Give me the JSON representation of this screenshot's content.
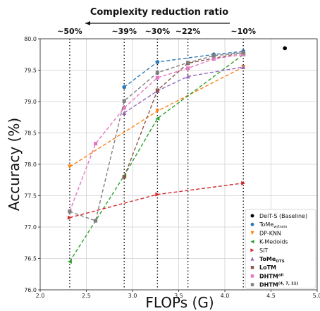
{
  "chart_data": {
    "type": "line",
    "title": "Complexity reduction ratio",
    "xlabel": "FLOPs (G)",
    "ylabel": "Accuracy (%)",
    "xlim": [
      2.0,
      5.0
    ],
    "ylim": [
      76.0,
      80.0
    ],
    "xticks": [
      "2.0",
      "2.5",
      "3.0",
      "3.5",
      "4.0",
      "4.5",
      "5.0"
    ],
    "yticks": [
      "76.0",
      "76.5",
      "77.0",
      "77.5",
      "78.0",
      "78.5",
      "79.0",
      "79.5",
      "80.0"
    ],
    "grid": true,
    "legend_position": "bottom-right",
    "ratio_markers": [
      {
        "x": 2.32,
        "label": "~50%"
      },
      {
        "x": 2.91,
        "label": "~39%"
      },
      {
        "x": 3.27,
        "label": "~30%"
      },
      {
        "x": 3.6,
        "label": "~22%"
      },
      {
        "x": 4.2,
        "label": "~10%"
      }
    ],
    "series": [
      {
        "name": "DeiT-S (Baseline)",
        "color": "#000000",
        "marker": "circle",
        "line": false,
        "x": [
          4.65
        ],
        "y": [
          79.85
        ]
      },
      {
        "name": "ToMe",
        "name_sub": "w/train",
        "color": "#2e7ab6",
        "marker": "circle",
        "line": true,
        "x": [
          2.91,
          3.27,
          3.88,
          4.2
        ],
        "y": [
          79.23,
          79.63,
          79.75,
          79.8
        ]
      },
      {
        "name": "DP-KNN",
        "color": "#ff7f0e",
        "marker": "triangle-down",
        "line": true,
        "x": [
          2.32,
          3.27,
          4.2
        ],
        "y": [
          77.96,
          78.85,
          79.55
        ]
      },
      {
        "name": "K-Medoids",
        "color": "#2ca02c",
        "marker": "triangle-left",
        "line": true,
        "x": [
          2.32,
          2.91,
          3.27,
          4.2
        ],
        "y": [
          76.45,
          77.82,
          78.73,
          79.75
        ]
      },
      {
        "name": "SiT",
        "color": "#d62728",
        "marker": "triangle-right",
        "line": true,
        "x": [
          2.32,
          3.27,
          4.2
        ],
        "y": [
          77.15,
          77.52,
          77.7
        ]
      },
      {
        "name": "ToMe",
        "name_sub": "OTS",
        "bold": true,
        "color": "#9467bd",
        "marker": "triangle-up",
        "line": true,
        "x": [
          2.91,
          3.27,
          3.6,
          4.2
        ],
        "y": [
          78.82,
          79.17,
          79.4,
          79.55
        ]
      },
      {
        "name": "LoTM",
        "bold": true,
        "color": "#8c564b",
        "marker": "square",
        "line": true,
        "x": [
          2.91,
          3.27,
          3.6,
          4.2
        ],
        "y": [
          77.8,
          79.18,
          79.61,
          79.78
        ]
      },
      {
        "name": "DHTM",
        "name_sup": "all",
        "bold": true,
        "color": "#e377c2",
        "marker": "square",
        "line": true,
        "x": [
          2.32,
          2.6,
          2.91,
          3.27,
          3.6,
          3.88,
          4.2
        ],
        "y": [
          77.25,
          78.33,
          78.9,
          79.38,
          79.53,
          79.68,
          79.75
        ]
      },
      {
        "name": "DHTM",
        "name_sup": "(4, 7, 11)",
        "bold": true,
        "color": "#7f7f7f",
        "marker": "square",
        "line": true,
        "x": [
          2.32,
          2.6,
          2.91,
          3.27,
          3.6,
          3.88,
          4.2
        ],
        "y": [
          77.25,
          77.1,
          79.01,
          79.46,
          79.62,
          79.73,
          79.78
        ]
      }
    ]
  }
}
